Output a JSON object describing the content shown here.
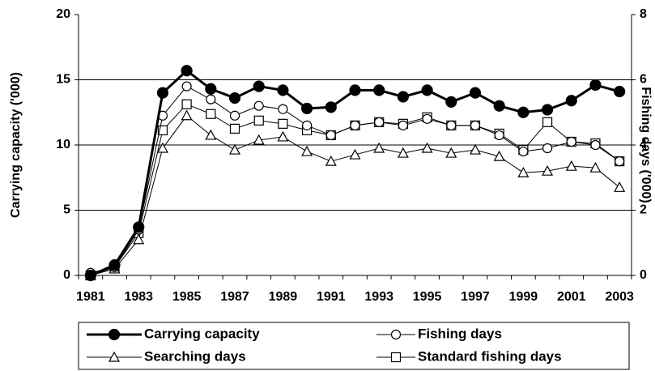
{
  "chart_data": {
    "type": "line",
    "categories": [
      "1981",
      null,
      "1983",
      null,
      "1985",
      null,
      "1987",
      null,
      "1989",
      null,
      "1991",
      null,
      "1993",
      null,
      "1995",
      null,
      "1997",
      null,
      "1999",
      null,
      "2001",
      null,
      "2003"
    ],
    "y_label": "Carrying capacity ('000)",
    "y2_label": "Fishing days ('000)",
    "ylim": [
      0,
      20
    ],
    "yticks": [
      0,
      5,
      10,
      15,
      20
    ],
    "y2lim": [
      0,
      8
    ],
    "y2ticks": [
      0,
      2,
      4,
      6,
      8
    ],
    "grid": true,
    "legend": "bottom",
    "series": [
      {
        "name": "Carrying capacity",
        "color": "#000000",
        "marker": "filled-circle",
        "line_width": 3,
        "values": [
          0,
          0.8,
          3.7,
          14.0,
          15.7,
          14.3,
          13.6,
          14.5,
          14.2,
          12.8,
          12.9,
          14.2,
          14.2,
          13.7,
          14.2,
          13.3,
          14.0,
          13.0,
          12.5,
          12.7,
          13.4,
          14.6,
          14.1
        ]
      },
      {
        "name": "Fishing days",
        "color": "#000000",
        "marker": "open-circle",
        "line_width": 1,
        "axis": "y2",
        "values": [
          0.08,
          0.25,
          1.4,
          4.9,
          5.8,
          5.4,
          4.9,
          5.2,
          5.1,
          4.6,
          4.3,
          4.6,
          4.7,
          4.6,
          4.8,
          4.6,
          4.6,
          4.3,
          3.8,
          3.9,
          4.1,
          4.0,
          3.5
        ]
      },
      {
        "name": "Searching days",
        "color": "#000000",
        "marker": "open-triangle",
        "line_width": 1,
        "axis": "y2",
        "values": [
          0,
          0.2,
          1.1,
          3.9,
          4.9,
          4.3,
          3.85,
          4.15,
          4.25,
          3.8,
          3.5,
          3.7,
          3.9,
          3.75,
          3.9,
          3.75,
          3.85,
          3.65,
          3.15,
          3.2,
          3.35,
          3.3,
          2.7
        ]
      },
      {
        "name": "Standard fishing days",
        "color": "#000000",
        "marker": "open-square",
        "line_width": 1,
        "axis": "y2",
        "values": [
          0,
          0.25,
          1.3,
          4.45,
          5.25,
          4.95,
          4.5,
          4.75,
          4.65,
          4.45,
          4.3,
          4.6,
          4.7,
          4.65,
          4.85,
          4.6,
          4.6,
          4.35,
          3.85,
          4.7,
          4.1,
          4.05,
          3.5
        ]
      }
    ]
  }
}
